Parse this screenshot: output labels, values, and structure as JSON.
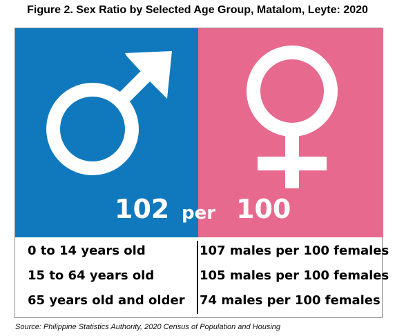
{
  "title": "Figure 2. Sex Ratio by Selected Age Group, Matalom, Leyte: 2020",
  "symbols": {
    "male": "male-symbol-icon",
    "female": "female-symbol-icon"
  },
  "colors": {
    "male": "#1079bd",
    "female": "#e76a8e"
  },
  "overall": {
    "male": "102",
    "per": "per",
    "female": "100"
  },
  "rows": [
    {
      "age": "0 to 14 years old",
      "value": "107 males per 100 females"
    },
    {
      "age": "15 to 64 years old",
      "value": "105 males per 100 females"
    },
    {
      "age": "65 years old and older",
      "value": "74 males per 100 females"
    }
  ],
  "source": "Source: Philippine Statistics Authority, 2020 Census of Population and Housing"
}
